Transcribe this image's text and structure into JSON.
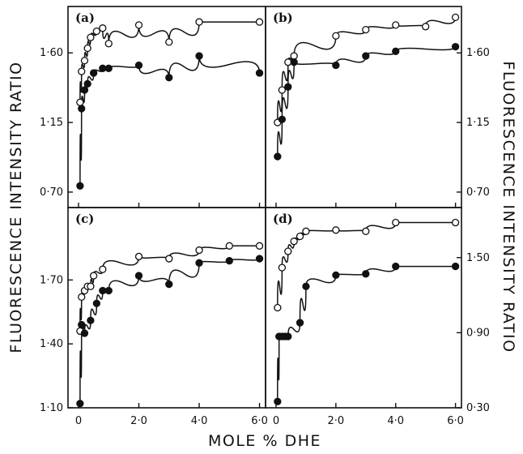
{
  "chart_data": {
    "type": "scatter",
    "ylabel": "FLUORESCENCE INTENSITY RATIO",
    "xlabel": "MOLE % DHE",
    "x_ticks": [
      "0",
      "2·0",
      "4·0",
      "6·0"
    ],
    "x_tick_values": [
      0,
      2,
      4,
      6
    ],
    "xlim": [
      0,
      6.2
    ],
    "marker_legend": {
      "open": "open circle",
      "filled": "filled circle"
    },
    "panels": [
      {
        "label": "(a)",
        "ylim": [
          0.6,
          1.9
        ],
        "y_ticks": [
          "0·70",
          "1·15",
          "1·60"
        ],
        "y_tick_values": [
          0.7,
          1.15,
          1.6
        ],
        "y_axis_side": "left",
        "series": [
          {
            "marker": "open",
            "points": [
              [
                0.05,
                1.28
              ],
              [
                0.1,
                1.48
              ],
              [
                0.2,
                1.55
              ],
              [
                0.3,
                1.63
              ],
              [
                0.4,
                1.7
              ],
              [
                0.6,
                1.74
              ],
              [
                0.8,
                1.76
              ],
              [
                1.0,
                1.66
              ],
              [
                2.0,
                1.78
              ],
              [
                3.0,
                1.67
              ],
              [
                4.0,
                1.8
              ],
              [
                6.0,
                1.8
              ]
            ]
          },
          {
            "marker": "filled",
            "points": [
              [
                0.05,
                0.74
              ],
              [
                0.1,
                1.24
              ],
              [
                0.2,
                1.36
              ],
              [
                0.3,
                1.4
              ],
              [
                0.5,
                1.47
              ],
              [
                0.8,
                1.5
              ],
              [
                1.0,
                1.5
              ],
              [
                2.0,
                1.52
              ],
              [
                3.0,
                1.44
              ],
              [
                4.0,
                1.58
              ],
              [
                6.0,
                1.47
              ]
            ]
          }
        ]
      },
      {
        "label": "(b)",
        "ylim": [
          0.6,
          1.9
        ],
        "y_ticks": [
          "0·70",
          "1·15",
          "1·60"
        ],
        "y_tick_values": [
          0.7,
          1.15,
          1.6
        ],
        "y_axis_side": "right",
        "series": [
          {
            "marker": "open",
            "points": [
              [
                0.05,
                1.15
              ],
              [
                0.2,
                1.36
              ],
              [
                0.4,
                1.54
              ],
              [
                0.6,
                1.58
              ],
              [
                2.0,
                1.71
              ],
              [
                3.0,
                1.75
              ],
              [
                4.0,
                1.78
              ],
              [
                5.0,
                1.77
              ],
              [
                6.0,
                1.83
              ]
            ]
          },
          {
            "marker": "filled",
            "points": [
              [
                0.05,
                0.93
              ],
              [
                0.2,
                1.17
              ],
              [
                0.4,
                1.38
              ],
              [
                0.6,
                1.54
              ],
              [
                2.0,
                1.52
              ],
              [
                3.0,
                1.58
              ],
              [
                4.0,
                1.61
              ],
              [
                6.0,
                1.64
              ]
            ]
          }
        ]
      },
      {
        "label": "(c)",
        "ylim": [
          1.1,
          2.04
        ],
        "y_ticks": [
          "1·10",
          "1·40",
          "1·70"
        ],
        "y_tick_values": [
          1.1,
          1.4,
          1.7
        ],
        "y_axis_side": "left",
        "series": [
          {
            "marker": "open",
            "points": [
              [
                0.05,
                1.46
              ],
              [
                0.1,
                1.62
              ],
              [
                0.2,
                1.65
              ],
              [
                0.3,
                1.67
              ],
              [
                0.4,
                1.67
              ],
              [
                0.5,
                1.72
              ],
              [
                0.8,
                1.75
              ],
              [
                2.0,
                1.81
              ],
              [
                3.0,
                1.8
              ],
              [
                4.0,
                1.84
              ],
              [
                5.0,
                1.86
              ],
              [
                6.0,
                1.86
              ]
            ]
          },
          {
            "marker": "filled",
            "points": [
              [
                0.05,
                1.12
              ],
              [
                0.1,
                1.49
              ],
              [
                0.2,
                1.45
              ],
              [
                0.4,
                1.51
              ],
              [
                0.6,
                1.59
              ],
              [
                0.8,
                1.65
              ],
              [
                1.0,
                1.65
              ],
              [
                2.0,
                1.72
              ],
              [
                3.0,
                1.68
              ],
              [
                4.0,
                1.78
              ],
              [
                5.0,
                1.79
              ],
              [
                6.0,
                1.8
              ]
            ]
          }
        ]
      },
      {
        "label": "(d)",
        "ylim": [
          0.3,
          1.9
        ],
        "y_ticks": [
          "0·30",
          "0·90",
          "1·50"
        ],
        "y_tick_values": [
          0.3,
          0.9,
          1.5
        ],
        "y_axis_side": "right",
        "series": [
          {
            "marker": "open",
            "points": [
              [
                0.05,
                1.1
              ],
              [
                0.2,
                1.42
              ],
              [
                0.4,
                1.55
              ],
              [
                0.6,
                1.63
              ],
              [
                0.8,
                1.67
              ],
              [
                1.0,
                1.71
              ],
              [
                2.0,
                1.72
              ],
              [
                3.0,
                1.71
              ],
              [
                4.0,
                1.78
              ],
              [
                6.0,
                1.78
              ]
            ]
          },
          {
            "marker": "filled",
            "points": [
              [
                0.05,
                0.35
              ],
              [
                0.1,
                0.87
              ],
              [
                0.2,
                0.87
              ],
              [
                0.3,
                0.87
              ],
              [
                0.4,
                0.87
              ],
              [
                0.8,
                0.98
              ],
              [
                1.0,
                1.27
              ],
              [
                2.0,
                1.36
              ],
              [
                3.0,
                1.37
              ],
              [
                4.0,
                1.43
              ],
              [
                6.0,
                1.43
              ]
            ]
          }
        ]
      }
    ]
  }
}
